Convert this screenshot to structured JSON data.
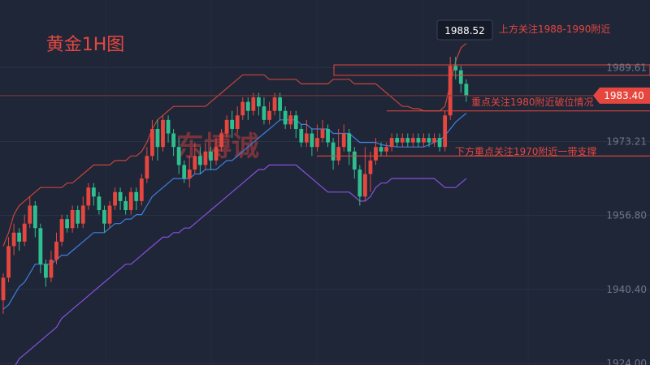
{
  "chart_data": {
    "type": "candlestick",
    "title": "黄金1H图",
    "watermark": "东博诚",
    "ylim": [
      1924.0,
      2001.0
    ],
    "yticks": [
      "1989.61",
      "1973.21",
      "1956.80",
      "1940.40",
      "1924.00"
    ],
    "last_price": "1983.40",
    "tooltip_price": "1988.52",
    "annotations": [
      {
        "text": "上方关注1988-1990附近",
        "level": 1989.0
      },
      {
        "text": "重点关注1980附近破位情况",
        "level": 1980.0
      },
      {
        "text": "下方重点关注1970附近一带支撑",
        "level": 1970.0
      }
    ],
    "colors": {
      "up": "#e5473f",
      "down": "#2fbf8f",
      "mid": "#3f7fe0",
      "upper": "#c9443a",
      "lower": "#8a4fe0",
      "box": "#e5473f"
    },
    "candles": [
      [
        1938,
        1943,
        1935,
        1944
      ],
      [
        1943,
        1950,
        1942,
        1952
      ],
      [
        1950,
        1953,
        1948,
        1955
      ],
      [
        1953,
        1951,
        1949,
        1954
      ],
      [
        1951,
        1955,
        1950,
        1957
      ],
      [
        1955,
        1959,
        1954,
        1961
      ],
      [
        1959,
        1954,
        1952,
        1960
      ],
      [
        1954,
        1946,
        1944,
        1955
      ],
      [
        1946,
        1943,
        1941,
        1947
      ],
      [
        1943,
        1947,
        1942,
        1949
      ],
      [
        1947,
        1951,
        1946,
        1953
      ],
      [
        1951,
        1956,
        1950,
        1957
      ],
      [
        1956,
        1954,
        1953,
        1957
      ],
      [
        1954,
        1958,
        1953,
        1959
      ],
      [
        1958,
        1955,
        1954,
        1959
      ],
      [
        1955,
        1959,
        1954,
        1961
      ],
      [
        1959,
        1963,
        1958,
        1964
      ],
      [
        1963,
        1961,
        1959,
        1964
      ],
      [
        1961,
        1958,
        1957,
        1962
      ],
      [
        1958,
        1955,
        1953,
        1959
      ],
      [
        1955,
        1959,
        1954,
        1960
      ],
      [
        1959,
        1962,
        1958,
        1963
      ],
      [
        1962,
        1960,
        1958,
        1963
      ],
      [
        1960,
        1958,
        1957,
        1961
      ],
      [
        1958,
        1962,
        1957,
        1963
      ],
      [
        1962,
        1960,
        1958,
        1963
      ],
      [
        1960,
        1965,
        1959,
        1966
      ],
      [
        1965,
        1970,
        1964,
        1972
      ],
      [
        1970,
        1976,
        1969,
        1978
      ],
      [
        1976,
        1972,
        1969,
        1978
      ],
      [
        1972,
        1978,
        1971,
        1979
      ],
      [
        1978,
        1975,
        1973,
        1979
      ],
      [
        1975,
        1972,
        1970,
        1976
      ],
      [
        1972,
        1968,
        1966,
        1974
      ],
      [
        1968,
        1965,
        1964,
        1969
      ],
      [
        1965,
        1967,
        1963,
        1970
      ],
      [
        1967,
        1970,
        1966,
        1973
      ],
      [
        1970,
        1968,
        1966,
        1972
      ],
      [
        1968,
        1971,
        1967,
        1973
      ],
      [
        1971,
        1969,
        1967,
        1972
      ],
      [
        1969,
        1972,
        1968,
        1974
      ],
      [
        1972,
        1975,
        1971,
        1976
      ],
      [
        1975,
        1978,
        1974,
        1979
      ],
      [
        1978,
        1976,
        1974,
        1980
      ],
      [
        1976,
        1979,
        1975,
        1981
      ],
      [
        1979,
        1982,
        1978,
        1983
      ],
      [
        1982,
        1980,
        1978,
        1983
      ],
      [
        1980,
        1983,
        1979,
        1984
      ],
      [
        1983,
        1981,
        1979,
        1984
      ],
      [
        1981,
        1978,
        1977,
        1983
      ],
      [
        1978,
        1980,
        1977,
        1982
      ],
      [
        1980,
        1983,
        1979,
        1984
      ],
      [
        1983,
        1980,
        1978,
        1984
      ],
      [
        1980,
        1977,
        1976,
        1981
      ],
      [
        1977,
        1979,
        1976,
        1980
      ],
      [
        1979,
        1976,
        1974,
        1980
      ],
      [
        1976,
        1973,
        1972,
        1977
      ],
      [
        1973,
        1975,
        1972,
        1978
      ],
      [
        1975,
        1972,
        1970,
        1976
      ],
      [
        1972,
        1974,
        1971,
        1977
      ],
      [
        1974,
        1976,
        1973,
        1978
      ],
      [
        1976,
        1973,
        1972,
        1977
      ],
      [
        1973,
        1969,
        1967,
        1974
      ],
      [
        1969,
        1972,
        1968,
        1976
      ],
      [
        1972,
        1975,
        1971,
        1977
      ],
      [
        1975,
        1971,
        1968,
        1976
      ],
      [
        1971,
        1967,
        1965,
        1972
      ],
      [
        1967,
        1961,
        1959,
        1968
      ],
      [
        1961,
        1966,
        1960,
        1972
      ],
      [
        1966,
        1969,
        1962,
        1971
      ],
      [
        1969,
        1972,
        1968,
        1974
      ],
      [
        1972,
        1971,
        1970,
        1973
      ],
      [
        1971,
        1972,
        1970,
        1973
      ],
      [
        1972,
        1974,
        1971,
        1975
      ],
      [
        1974,
        1973,
        1972,
        1975
      ],
      [
        1973,
        1974,
        1972,
        1975
      ],
      [
        1974,
        1973,
        1972,
        1975
      ],
      [
        1973,
        1974,
        1972,
        1975
      ],
      [
        1974,
        1973,
        1972,
        1975
      ],
      [
        1973,
        1974,
        1972,
        1975
      ],
      [
        1974,
        1973,
        1972,
        1975
      ],
      [
        1973,
        1974,
        1972,
        1975
      ],
      [
        1974,
        1972,
        1971,
        1975
      ],
      [
        1972,
        1979,
        1971,
        1980
      ],
      [
        1979,
        1990,
        1978,
        1992
      ],
      [
        1990,
        1989,
        1987,
        1992
      ],
      [
        1989,
        1986,
        1984,
        1990
      ],
      [
        1986,
        1983.4,
        1982,
        1987
      ]
    ],
    "mid": [
      1936,
      1937,
      1939,
      1941,
      1942,
      1944,
      1946,
      1946,
      1946,
      1946,
      1947,
      1948,
      1948,
      1949,
      1950,
      1951,
      1952,
      1953,
      1953,
      1953,
      1954,
      1955,
      1955,
      1956,
      1956,
      1957,
      1957,
      1959,
      1961,
      1962,
      1963,
      1964,
      1965,
      1965,
      1965,
      1965,
      1966,
      1966,
      1967,
      1967,
      1967,
      1968,
      1969,
      1969,
      1970,
      1971,
      1972,
      1973,
      1974,
      1975,
      1976,
      1977,
      1978,
      1978,
      1978,
      1978,
      1977,
      1977,
      1976,
      1976,
      1976,
      1976,
      1975,
      1975,
      1975,
      1975,
      1974,
      1973,
      1973,
      1973,
      1973,
      1972.5,
      1972.3,
      1972.2,
      1972,
      1972,
      1972,
      1972,
      1972,
      1972,
      1972.5,
      1973,
      1973.5,
      1974.5,
      1976,
      1977.5,
      1978.5,
      1979.5
    ],
    "upper": [
      1950,
      1953,
      1957,
      1959,
      1960,
      1961,
      1962,
      1963,
      1963,
      1963,
      1963,
      1963,
      1964,
      1964,
      1965,
      1966,
      1967,
      1968,
      1968,
      1968,
      1968,
      1969,
      1969,
      1969,
      1970,
      1970,
      1971,
      1973,
      1976,
      1978,
      1979,
      1980,
      1981,
      1981,
      1981,
      1981,
      1981,
      1981,
      1981,
      1982,
      1983,
      1984,
      1985,
      1986,
      1987,
      1988,
      1988,
      1988,
      1988,
      1988,
      1987,
      1987,
      1987,
      1987,
      1987,
      1987,
      1986,
      1986,
      1986,
      1986,
      1986,
      1986,
      1987,
      1987,
      1987,
      1987,
      1986,
      1986,
      1986,
      1986,
      1986,
      1985,
      1984,
      1983,
      1982,
      1981,
      1981,
      1980.5,
      1980.5,
      1980,
      1980,
      1980,
      1980,
      1981,
      1986,
      1991,
      1994,
      1995
    ],
    "lower": [
      1922,
      1922,
      1923,
      1925,
      1926,
      1927,
      1928,
      1929,
      1930,
      1931,
      1932,
      1934,
      1935,
      1936,
      1937,
      1938,
      1939,
      1940,
      1941,
      1942,
      1943,
      1944,
      1945,
      1946,
      1946,
      1947,
      1948,
      1949,
      1950,
      1951,
      1952,
      1952,
      1953,
      1953,
      1954,
      1954,
      1955,
      1956,
      1957,
      1958,
      1959,
      1960,
      1961,
      1962,
      1963,
      1964,
      1965,
      1966,
      1967,
      1967,
      1968,
      1968,
      1968,
      1968,
      1968,
      1968,
      1967,
      1966,
      1965,
      1964,
      1963,
      1962,
      1962,
      1962,
      1962,
      1962,
      1961,
      1960,
      1960,
      1961,
      1963,
      1964,
      1964,
      1965,
      1965,
      1965,
      1965,
      1965,
      1965,
      1965,
      1965,
      1965,
      1964,
      1963,
      1963,
      1963,
      1964,
      1965
    ]
  }
}
